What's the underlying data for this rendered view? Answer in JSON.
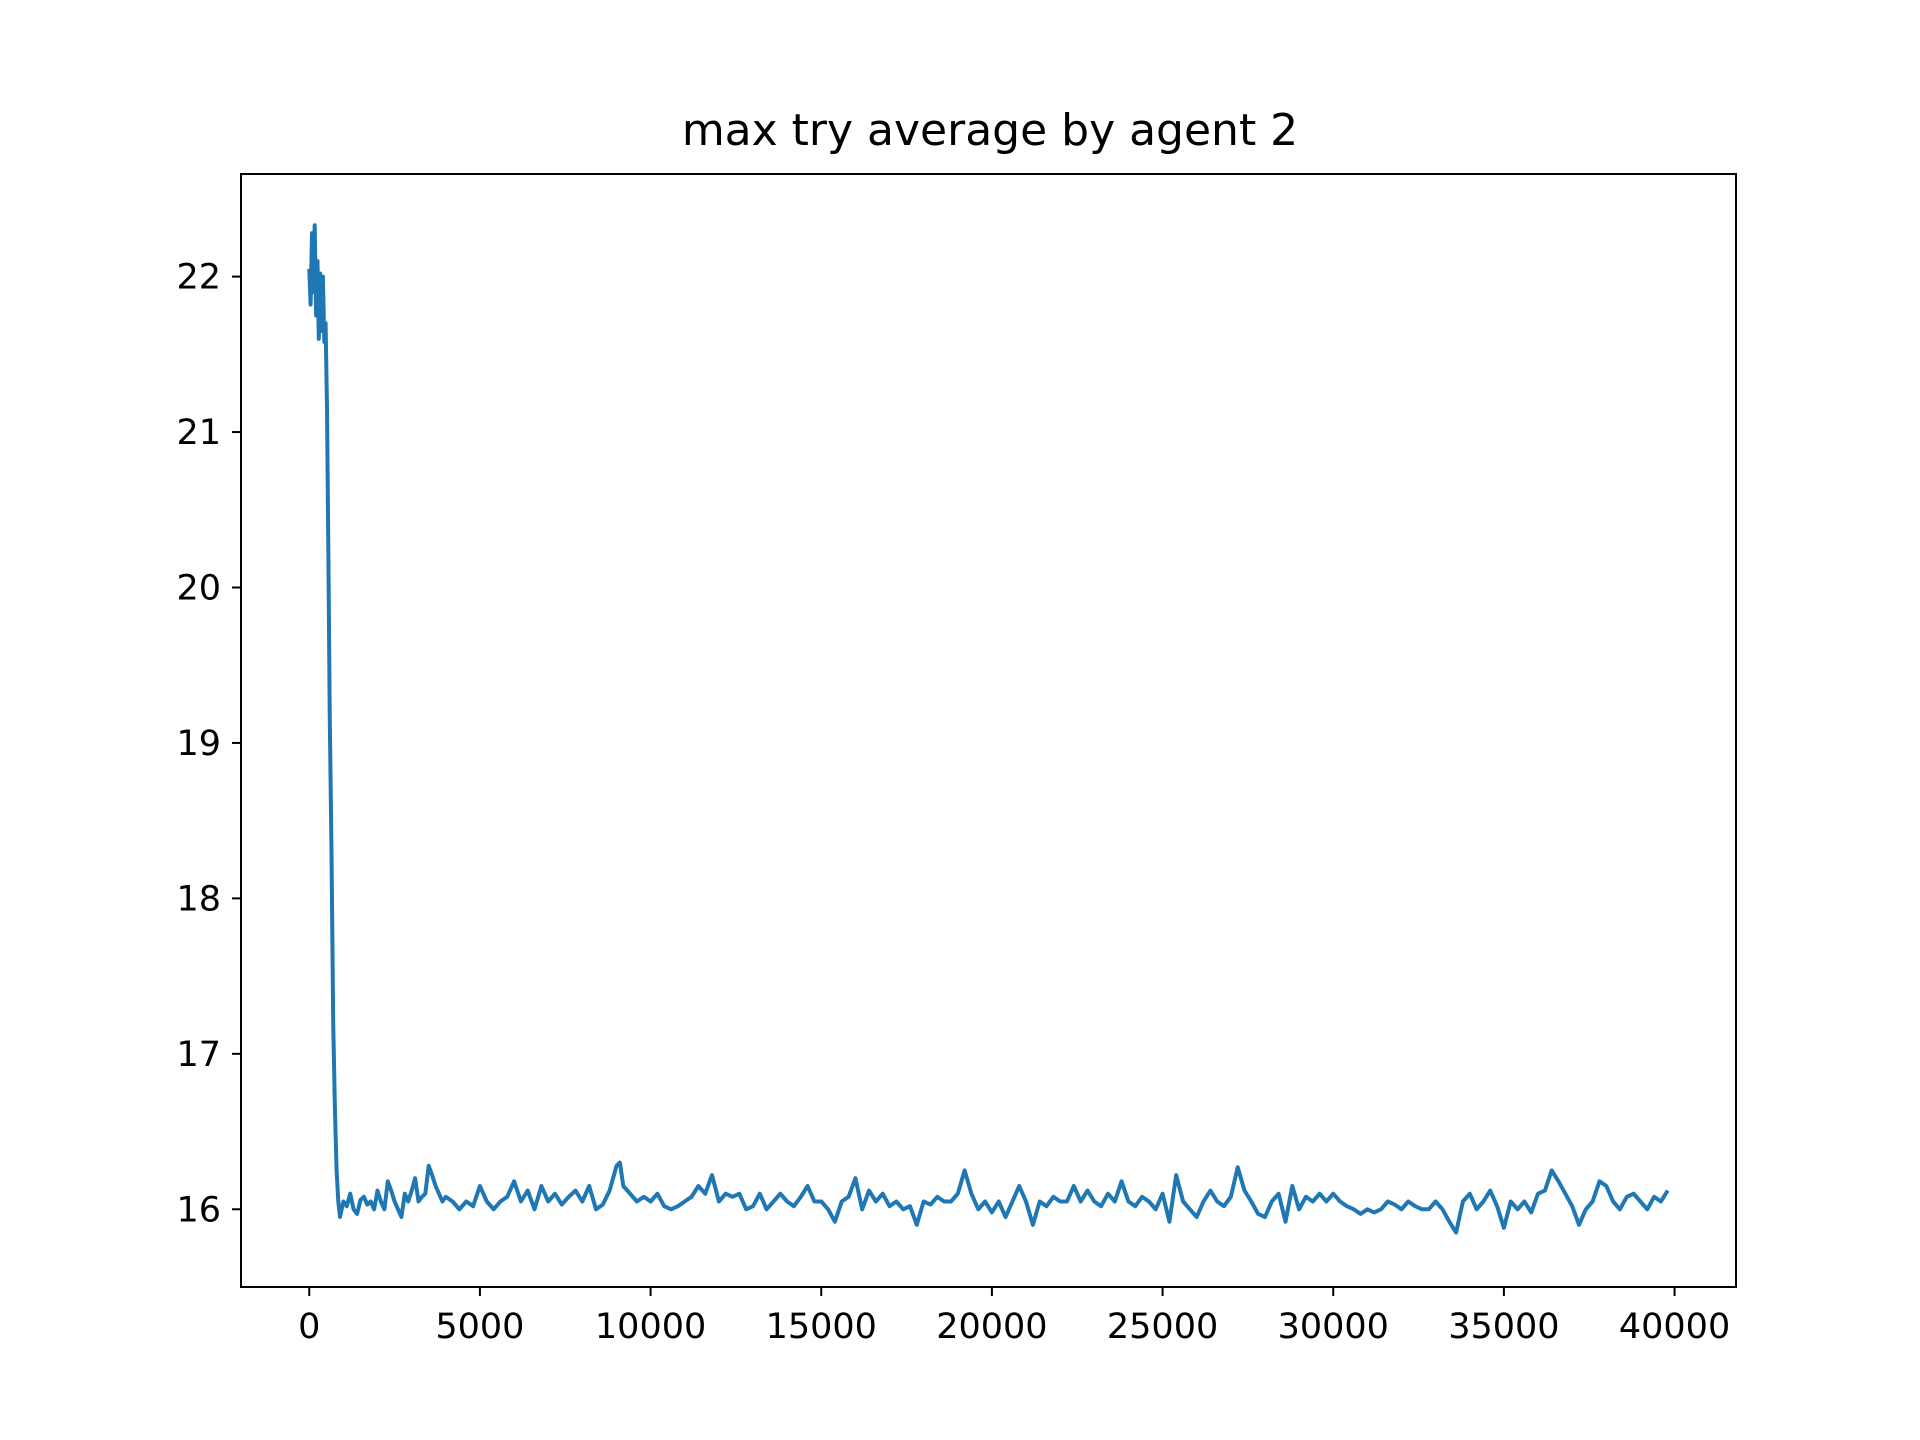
{
  "chart_data": {
    "type": "line",
    "title": "max try average by agent 2",
    "xlabel": "",
    "ylabel": "",
    "xlim": [
      -2000,
      41800
    ],
    "ylim": [
      15.5,
      22.66
    ],
    "x_ticks": [
      0,
      5000,
      10000,
      15000,
      20000,
      25000,
      30000,
      35000,
      40000
    ],
    "x_tick_labels": [
      "0",
      "5000",
      "10000",
      "15000",
      "20000",
      "25000",
      "30000",
      "35000",
      "40000"
    ],
    "y_ticks": [
      16,
      17,
      18,
      19,
      20,
      21,
      22
    ],
    "y_tick_labels": [
      "16",
      "17",
      "18",
      "19",
      "20",
      "21",
      "22"
    ],
    "grid": false,
    "legend": "none",
    "colors": {
      "line": "#1f77b4",
      "axes": "#000000",
      "background": "#ffffff"
    },
    "series": [
      {
        "color": "#1f77b4",
        "points": [
          [
            0,
            22.05
          ],
          [
            40,
            21.82
          ],
          [
            80,
            22.28
          ],
          [
            120,
            21.9
          ],
          [
            160,
            22.33
          ],
          [
            200,
            21.75
          ],
          [
            240,
            22.1
          ],
          [
            280,
            21.6
          ],
          [
            320,
            22.02
          ],
          [
            360,
            21.65
          ],
          [
            400,
            22.0
          ],
          [
            440,
            21.58
          ],
          [
            480,
            21.7
          ],
          [
            520,
            21.15
          ],
          [
            560,
            20.2
          ],
          [
            600,
            19.2
          ],
          [
            650,
            18.3
          ],
          [
            700,
            17.2
          ],
          [
            750,
            16.65
          ],
          [
            800,
            16.25
          ],
          [
            850,
            16.05
          ],
          [
            900,
            15.95
          ],
          [
            1000,
            16.05
          ],
          [
            1100,
            16.02
          ],
          [
            1200,
            16.1
          ],
          [
            1300,
            16.0
          ],
          [
            1400,
            15.97
          ],
          [
            1500,
            16.06
          ],
          [
            1600,
            16.08
          ],
          [
            1700,
            16.03
          ],
          [
            1800,
            16.05
          ],
          [
            1900,
            16.0
          ],
          [
            2000,
            16.12
          ],
          [
            2100,
            16.05
          ],
          [
            2200,
            16.0
          ],
          [
            2300,
            16.18
          ],
          [
            2400,
            16.12
          ],
          [
            2500,
            16.05
          ],
          [
            2600,
            16.0
          ],
          [
            2700,
            15.95
          ],
          [
            2800,
            16.1
          ],
          [
            2900,
            16.05
          ],
          [
            3000,
            16.12
          ],
          [
            3100,
            16.2
          ],
          [
            3200,
            16.05
          ],
          [
            3300,
            16.08
          ],
          [
            3400,
            16.1
          ],
          [
            3500,
            16.28
          ],
          [
            3600,
            16.22
          ],
          [
            3700,
            16.15
          ],
          [
            3800,
            16.1
          ],
          [
            3900,
            16.05
          ],
          [
            4000,
            16.08
          ],
          [
            4200,
            16.05
          ],
          [
            4400,
            16.0
          ],
          [
            4600,
            16.05
          ],
          [
            4800,
            16.02
          ],
          [
            5000,
            16.15
          ],
          [
            5200,
            16.05
          ],
          [
            5400,
            16.0
          ],
          [
            5600,
            16.05
          ],
          [
            5800,
            16.08
          ],
          [
            6000,
            16.18
          ],
          [
            6200,
            16.05
          ],
          [
            6400,
            16.12
          ],
          [
            6600,
            16.0
          ],
          [
            6800,
            16.15
          ],
          [
            7000,
            16.05
          ],
          [
            7200,
            16.1
          ],
          [
            7400,
            16.03
          ],
          [
            7600,
            16.08
          ],
          [
            7800,
            16.12
          ],
          [
            8000,
            16.05
          ],
          [
            8200,
            16.15
          ],
          [
            8400,
            16.0
          ],
          [
            8600,
            16.03
          ],
          [
            8800,
            16.12
          ],
          [
            9000,
            16.28
          ],
          [
            9100,
            16.3
          ],
          [
            9200,
            16.15
          ],
          [
            9400,
            16.1
          ],
          [
            9600,
            16.05
          ],
          [
            9800,
            16.08
          ],
          [
            10000,
            16.05
          ],
          [
            10200,
            16.1
          ],
          [
            10400,
            16.02
          ],
          [
            10600,
            16.0
          ],
          [
            10800,
            16.02
          ],
          [
            11000,
            16.05
          ],
          [
            11200,
            16.08
          ],
          [
            11400,
            16.15
          ],
          [
            11600,
            16.1
          ],
          [
            11800,
            16.22
          ],
          [
            12000,
            16.05
          ],
          [
            12200,
            16.1
          ],
          [
            12400,
            16.08
          ],
          [
            12600,
            16.1
          ],
          [
            12800,
            16.0
          ],
          [
            13000,
            16.02
          ],
          [
            13200,
            16.1
          ],
          [
            13400,
            16.0
          ],
          [
            13600,
            16.05
          ],
          [
            13800,
            16.1
          ],
          [
            14000,
            16.05
          ],
          [
            14200,
            16.02
          ],
          [
            14400,
            16.08
          ],
          [
            14600,
            16.15
          ],
          [
            14800,
            16.05
          ],
          [
            15000,
            16.05
          ],
          [
            15200,
            16.0
          ],
          [
            15400,
            15.92
          ],
          [
            15600,
            16.05
          ],
          [
            15800,
            16.08
          ],
          [
            16000,
            16.2
          ],
          [
            16200,
            16.0
          ],
          [
            16400,
            16.12
          ],
          [
            16600,
            16.05
          ],
          [
            16800,
            16.1
          ],
          [
            17000,
            16.02
          ],
          [
            17200,
            16.05
          ],
          [
            17400,
            16.0
          ],
          [
            17600,
            16.02
          ],
          [
            17800,
            15.9
          ],
          [
            18000,
            16.05
          ],
          [
            18200,
            16.03
          ],
          [
            18400,
            16.08
          ],
          [
            18600,
            16.05
          ],
          [
            18800,
            16.05
          ],
          [
            19000,
            16.1
          ],
          [
            19200,
            16.25
          ],
          [
            19400,
            16.1
          ],
          [
            19600,
            16.0
          ],
          [
            19800,
            16.05
          ],
          [
            20000,
            15.98
          ],
          [
            20200,
            16.05
          ],
          [
            20400,
            15.95
          ],
          [
            20600,
            16.05
          ],
          [
            20800,
            16.15
          ],
          [
            21000,
            16.05
          ],
          [
            21200,
            15.9
          ],
          [
            21400,
            16.05
          ],
          [
            21600,
            16.02
          ],
          [
            21800,
            16.08
          ],
          [
            22000,
            16.05
          ],
          [
            22200,
            16.05
          ],
          [
            22400,
            16.15
          ],
          [
            22600,
            16.05
          ],
          [
            22800,
            16.12
          ],
          [
            23000,
            16.05
          ],
          [
            23200,
            16.02
          ],
          [
            23400,
            16.1
          ],
          [
            23600,
            16.05
          ],
          [
            23800,
            16.18
          ],
          [
            24000,
            16.05
          ],
          [
            24200,
            16.02
          ],
          [
            24400,
            16.08
          ],
          [
            24600,
            16.05
          ],
          [
            24800,
            16.0
          ],
          [
            25000,
            16.1
          ],
          [
            25200,
            15.92
          ],
          [
            25400,
            16.22
          ],
          [
            25600,
            16.05
          ],
          [
            25800,
            16.0
          ],
          [
            26000,
            15.95
          ],
          [
            26200,
            16.05
          ],
          [
            26400,
            16.12
          ],
          [
            26600,
            16.05
          ],
          [
            26800,
            16.02
          ],
          [
            27000,
            16.08
          ],
          [
            27200,
            16.27
          ],
          [
            27400,
            16.12
          ],
          [
            27600,
            16.05
          ],
          [
            27800,
            15.97
          ],
          [
            28000,
            15.95
          ],
          [
            28200,
            16.05
          ],
          [
            28400,
            16.1
          ],
          [
            28600,
            15.92
          ],
          [
            28800,
            16.15
          ],
          [
            29000,
            16.0
          ],
          [
            29200,
            16.08
          ],
          [
            29400,
            16.05
          ],
          [
            29600,
            16.1
          ],
          [
            29800,
            16.05
          ],
          [
            30000,
            16.1
          ],
          [
            30200,
            16.05
          ],
          [
            30400,
            16.02
          ],
          [
            30600,
            16.0
          ],
          [
            30800,
            15.97
          ],
          [
            31000,
            16.0
          ],
          [
            31200,
            15.98
          ],
          [
            31400,
            16.0
          ],
          [
            31600,
            16.05
          ],
          [
            31800,
            16.03
          ],
          [
            32000,
            16.0
          ],
          [
            32200,
            16.05
          ],
          [
            32400,
            16.02
          ],
          [
            32600,
            16.0
          ],
          [
            32800,
            16.0
          ],
          [
            33000,
            16.05
          ],
          [
            33200,
            16.0
          ],
          [
            33400,
            15.92
          ],
          [
            33600,
            15.85
          ],
          [
            33800,
            16.05
          ],
          [
            34000,
            16.1
          ],
          [
            34200,
            16.0
          ],
          [
            34400,
            16.05
          ],
          [
            34600,
            16.12
          ],
          [
            34800,
            16.02
          ],
          [
            35000,
            15.88
          ],
          [
            35200,
            16.05
          ],
          [
            35400,
            16.0
          ],
          [
            35600,
            16.05
          ],
          [
            35800,
            15.98
          ],
          [
            36000,
            16.1
          ],
          [
            36200,
            16.12
          ],
          [
            36400,
            16.25
          ],
          [
            36600,
            16.18
          ],
          [
            36800,
            16.1
          ],
          [
            37000,
            16.02
          ],
          [
            37200,
            15.9
          ],
          [
            37400,
            16.0
          ],
          [
            37600,
            16.05
          ],
          [
            37800,
            16.18
          ],
          [
            38000,
            16.15
          ],
          [
            38200,
            16.05
          ],
          [
            38400,
            16.0
          ],
          [
            38600,
            16.08
          ],
          [
            38800,
            16.1
          ],
          [
            39000,
            16.05
          ],
          [
            39200,
            16.0
          ],
          [
            39400,
            16.08
          ],
          [
            39600,
            16.05
          ],
          [
            39800,
            16.12
          ]
        ]
      }
    ]
  }
}
